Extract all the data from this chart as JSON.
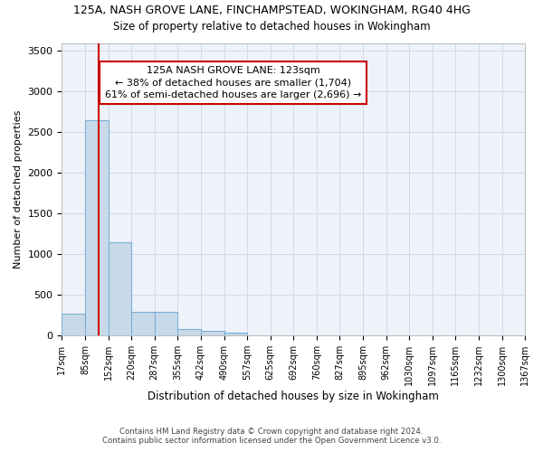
{
  "title1": "125A, NASH GROVE LANE, FINCHAMPSTEAD, WOKINGHAM, RG40 4HG",
  "title2": "Size of property relative to detached houses in Wokingham",
  "xlabel": "Distribution of detached houses by size in Wokingham",
  "ylabel": "Number of detached properties",
  "bin_edges": [
    17,
    85,
    152,
    220,
    287,
    355,
    422,
    490,
    557,
    625,
    692,
    760,
    827,
    895,
    962,
    1030,
    1097,
    1165,
    1232,
    1300,
    1367
  ],
  "bar_heights": [
    270,
    2650,
    1150,
    290,
    290,
    80,
    60,
    40,
    0,
    0,
    0,
    0,
    0,
    0,
    0,
    0,
    0,
    0,
    0,
    0
  ],
  "bar_color": "#c8daea",
  "bar_edge_color": "#7bafd4",
  "grid_color": "#d0d8ea",
  "background_color": "#eef2f9",
  "vline_x": 123,
  "vline_color": "#cc0000",
  "annotation_line1": "125A NASH GROVE LANE: 123sqm",
  "annotation_line2": "← 38% of detached houses are smaller (1,704)",
  "annotation_line3": "61% of semi-detached houses are larger (2,696) →",
  "ylim": [
    0,
    3600
  ],
  "yticks": [
    0,
    500,
    1000,
    1500,
    2000,
    2500,
    3000,
    3500
  ],
  "footer1": "Contains HM Land Registry data © Crown copyright and database right 2024.",
  "footer2": "Contains public sector information licensed under the Open Government Licence v3.0."
}
